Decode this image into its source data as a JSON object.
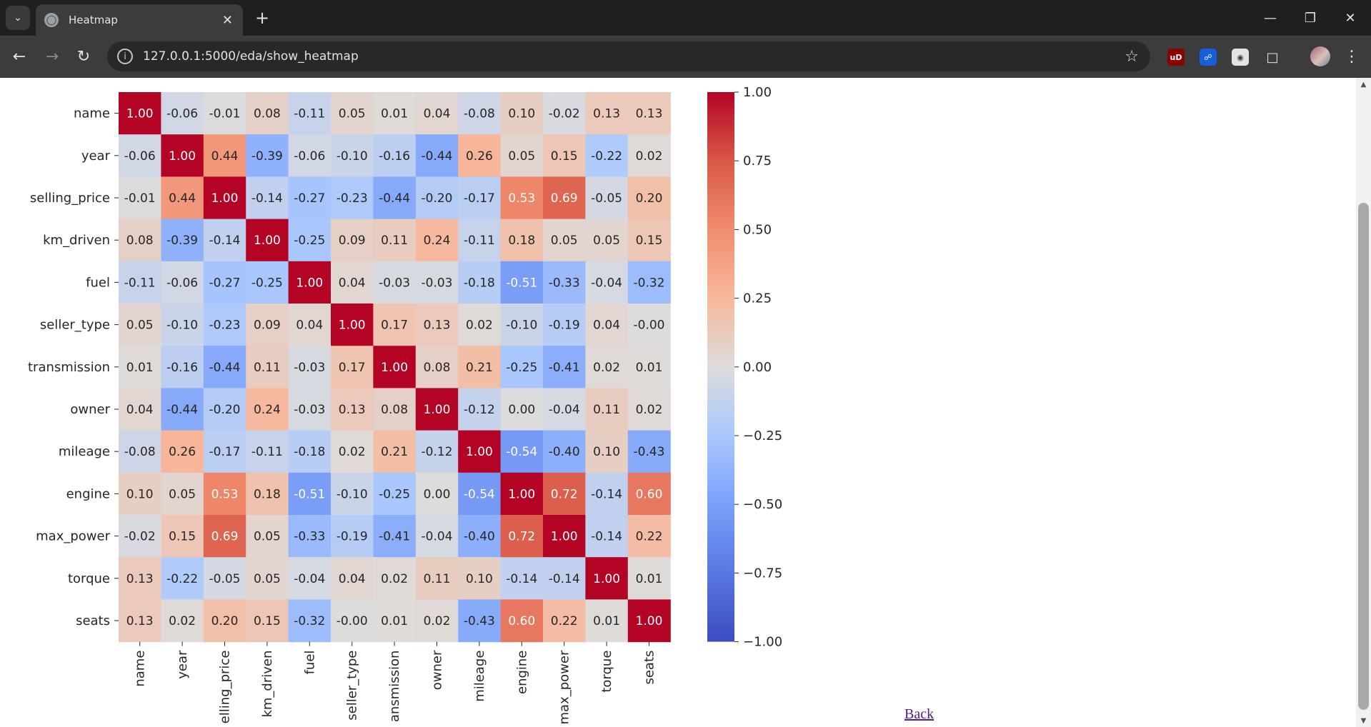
{
  "browser": {
    "tab_title": "Heatmap",
    "url": "127.0.0.1:5000/eda/show_heatmap",
    "extensions": [
      "ublock-origin-icon",
      "bitwarden-icon",
      "reader-mode-icon",
      "extensions-puzzle-icon"
    ]
  },
  "page": {
    "back_link": "Back"
  },
  "chart_data": {
    "type": "heatmap",
    "title": "",
    "colormap": "coolwarm",
    "vmin": -1.0,
    "vmax": 1.0,
    "annot_format": "0.00",
    "row_labels": [
      "name",
      "year",
      "selling_price",
      "km_driven",
      "fuel",
      "seller_type",
      "transmission",
      "owner",
      "mileage",
      "engine",
      "max_power",
      "torque",
      "seats"
    ],
    "col_labels": [
      "name",
      "year",
      "selling_price",
      "km_driven",
      "fuel",
      "seller_type",
      "transmission",
      "owner",
      "mileage",
      "engine",
      "max_power",
      "torque",
      "seats"
    ],
    "col_labels_displayed": [
      "name",
      "year",
      "elling_price",
      "km_driven",
      "fuel",
      "seller_type",
      "ansmission",
      "owner",
      "mileage",
      "engine",
      "max_power",
      "torque",
      "seats"
    ],
    "values": [
      [
        1.0,
        -0.06,
        -0.01,
        0.08,
        -0.11,
        0.05,
        0.01,
        0.04,
        -0.08,
        0.1,
        -0.02,
        0.13,
        0.13
      ],
      [
        -0.06,
        1.0,
        0.44,
        -0.39,
        -0.06,
        -0.1,
        -0.16,
        -0.44,
        0.26,
        0.05,
        0.15,
        -0.22,
        0.02
      ],
      [
        -0.01,
        0.44,
        1.0,
        -0.14,
        -0.27,
        -0.23,
        -0.44,
        -0.2,
        -0.17,
        0.53,
        0.69,
        -0.05,
        0.2
      ],
      [
        0.08,
        -0.39,
        -0.14,
        1.0,
        -0.25,
        0.09,
        0.11,
        0.24,
        -0.11,
        0.18,
        0.05,
        0.05,
        0.15
      ],
      [
        -0.11,
        -0.06,
        -0.27,
        -0.25,
        1.0,
        0.04,
        -0.03,
        -0.03,
        -0.18,
        -0.51,
        -0.33,
        -0.04,
        -0.32
      ],
      [
        0.05,
        -0.1,
        -0.23,
        0.09,
        0.04,
        1.0,
        0.17,
        0.13,
        0.02,
        -0.1,
        -0.19,
        0.04,
        -0.0
      ],
      [
        0.01,
        -0.16,
        -0.44,
        0.11,
        -0.03,
        0.17,
        1.0,
        0.08,
        0.21,
        -0.25,
        -0.41,
        0.02,
        0.01
      ],
      [
        0.04,
        -0.44,
        -0.2,
        0.24,
        -0.03,
        0.13,
        0.08,
        1.0,
        -0.12,
        0.0,
        -0.04,
        0.11,
        0.02
      ],
      [
        -0.08,
        0.26,
        -0.17,
        -0.11,
        -0.18,
        0.02,
        0.21,
        -0.12,
        1.0,
        -0.54,
        -0.4,
        0.1,
        -0.43
      ],
      [
        0.1,
        0.05,
        0.53,
        0.18,
        -0.51,
        -0.1,
        -0.25,
        0.0,
        -0.54,
        1.0,
        0.72,
        -0.14,
        0.6
      ],
      [
        -0.02,
        0.15,
        0.69,
        0.05,
        -0.33,
        -0.19,
        -0.41,
        -0.04,
        -0.4,
        0.72,
        1.0,
        -0.14,
        0.22
      ],
      [
        0.13,
        -0.22,
        -0.05,
        0.05,
        -0.04,
        0.04,
        0.02,
        0.11,
        0.1,
        -0.14,
        -0.14,
        1.0,
        0.01
      ],
      [
        0.13,
        0.02,
        0.2,
        0.15,
        -0.32,
        -0.0,
        0.01,
        0.02,
        -0.43,
        0.6,
        0.22,
        0.01,
        1.0
      ]
    ],
    "colorbar_ticks": [
      "1.00",
      "0.75",
      "0.50",
      "0.25",
      "0.00",
      "−0.25",
      "−0.50",
      "−0.75",
      "−1.00"
    ]
  }
}
